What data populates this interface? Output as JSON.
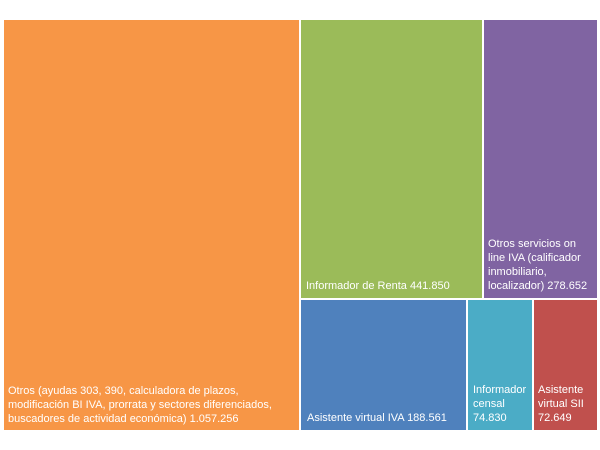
{
  "chart_data": {
    "type": "treemap",
    "title": "",
    "items": [
      {
        "name": "Otros (ayudas 303, 390, calculadora de plazos, modificación BI IVA, prorrata y sectores diferenciados, buscadores de actividad económica)",
        "label": " Otros (ayudas 303, 390, calculadora de plazos,\nmodificación BI IVA, prorrata y sectores diferenciados,\nbuscadores de actividad económica) 1.057.256",
        "value": 1057256,
        "color": "#F79646"
      },
      {
        "name": "Informador de Renta",
        "label": "Informador de Renta 441.850",
        "value": 441850,
        "color": "#9BBB59"
      },
      {
        "name": "Otros servicios on line IVA (calificador inmobiliario, localizador)",
        "label": "Otros servicios on\nline IVA (calificador\ninmobiliario,\nlocalizador) 278.652",
        "value": 278652,
        "color": "#8064A2"
      },
      {
        "name": "Asistente virtual IVA",
        "label": "Asistente virtual IVA 188.561",
        "value": 188561,
        "color": "#4F81BD"
      },
      {
        "name": "Informador censal",
        "label": "Informador\ncensal\n74.830",
        "value": 74830,
        "color": "#4BACC6"
      },
      {
        "name": "Asistente virtual SII",
        "label": "Asistente\nvirtual SII\n72.649",
        "value": 72649,
        "color": "#C0504D"
      }
    ]
  }
}
